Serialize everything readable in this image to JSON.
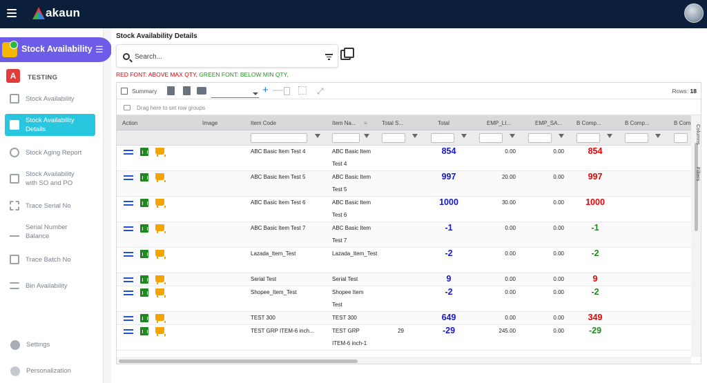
{
  "app": {
    "name": "akaun"
  },
  "sidebar": {
    "module_label": "Stock Availability",
    "org_label": "TESTING",
    "items": [
      {
        "label": "Stock Availability",
        "icon": "inventory-box-icon",
        "active": false
      },
      {
        "label": "Stock Availability Details",
        "icon": "details-card-icon",
        "active": true
      },
      {
        "label": "Stock Aging Report",
        "icon": "clock-icon",
        "active": false
      },
      {
        "label": "Stock Availability with SO and PO",
        "icon": "inventory-box-icon",
        "active": false
      },
      {
        "label": "Trace Serial No",
        "icon": "barcode-icon",
        "active": false
      },
      {
        "label": "Serial Number Balance",
        "icon": "balance-scale-icon",
        "active": false
      },
      {
        "label": "Trace Batch No",
        "icon": "inventory-box-icon",
        "active": false
      },
      {
        "label": "Bin Availability",
        "icon": "list-icon",
        "active": false
      }
    ],
    "bottom_items": [
      {
        "label": "Settings",
        "icon": "gear-icon"
      },
      {
        "label": "Personalization",
        "icon": "person-icon"
      }
    ]
  },
  "main": {
    "title": "Stock Availability Details",
    "search_placeholder": "Search...",
    "legend_red": "RED FONT: ABOVE MAX QTY,",
    "legend_green": "GREEN FONT: BELOW MIN QTY,"
  },
  "grid": {
    "summary_label": "Summary",
    "rows_label": "Rows:",
    "rows_count": "18",
    "group_hint": "Drag here to set row groups",
    "side_tabs": [
      "Columns",
      "Filters"
    ],
    "columns": [
      "Action",
      "Image",
      "Item Code",
      "Item Na...",
      "Total S...",
      "Total",
      "EMP_LI...",
      "EMP_SA...",
      "B Comp...",
      "B Comp...",
      "B Com"
    ],
    "rows": [
      {
        "code": "ABC Basic Item Test 4",
        "name": "ABC Basic Item Test 4",
        "total_s": "",
        "total": "854",
        "total_color": "blue",
        "emp_li": "0.00",
        "emp_sa": "0.00",
        "b_comp": "854",
        "b_comp_color": "red"
      },
      {
        "code": "ABC Basic Item Test 5",
        "name": "ABC Basic Item Test 5",
        "total_s": "",
        "total": "997",
        "total_color": "blue",
        "emp_li": "20.00",
        "emp_sa": "0.00",
        "b_comp": "997",
        "b_comp_color": "red"
      },
      {
        "code": "ABC Basic Item Test 6",
        "name": "ABC Basic Item Test 6",
        "total_s": "",
        "total": "1000",
        "total_color": "blue",
        "emp_li": "30.00",
        "emp_sa": "0.00",
        "b_comp": "1000",
        "b_comp_color": "red"
      },
      {
        "code": "ABC Basic Item Test 7",
        "name": "ABC Basic Item Test 7",
        "total_s": "",
        "total": "-1",
        "total_color": "blue",
        "emp_li": "0.00",
        "emp_sa": "0.00",
        "b_comp": "-1",
        "b_comp_color": "green"
      },
      {
        "code": "Lazada_Item_Test",
        "name": "Lazada_Item_Test",
        "total_s": "",
        "total": "-2",
        "total_color": "blue",
        "emp_li": "0.00",
        "emp_sa": "0.00",
        "b_comp": "-2",
        "b_comp_color": "green"
      },
      {
        "code": "Serial Test",
        "name": "Serial Test",
        "total_s": "",
        "total": "9",
        "total_color": "blue",
        "emp_li": "0.00",
        "emp_sa": "0.00",
        "b_comp": "9",
        "b_comp_color": "red"
      },
      {
        "code": "Shopee_Item_Test",
        "name": "Shopee Item Test",
        "total_s": "",
        "total": "-2",
        "total_color": "blue",
        "emp_li": "0.00",
        "emp_sa": "0.00",
        "b_comp": "-2",
        "b_comp_color": "green"
      },
      {
        "code": "TEST 300",
        "name": "TEST 300",
        "total_s": "",
        "total": "649",
        "total_color": "blue",
        "emp_li": "0.00",
        "emp_sa": "0.00",
        "b_comp": "349",
        "b_comp_color": "red"
      },
      {
        "code": "TEST GRP ITEM-6 inch...",
        "name": "TEST GRP ITEM-6 inch-1",
        "total_s": "29",
        "total": "-29",
        "total_color": "blue",
        "emp_li": "245.00",
        "emp_sa": "0.00",
        "b_comp": "-29",
        "b_comp_color": "green"
      }
    ]
  },
  "colors": {
    "topbar": "#0b1f3a",
    "module_pill": "#6d5ce7",
    "active_nav": "#29c6e0",
    "above_max": "#e00000",
    "below_min": "#1a9a1a",
    "total_blue": "#1515d6"
  }
}
